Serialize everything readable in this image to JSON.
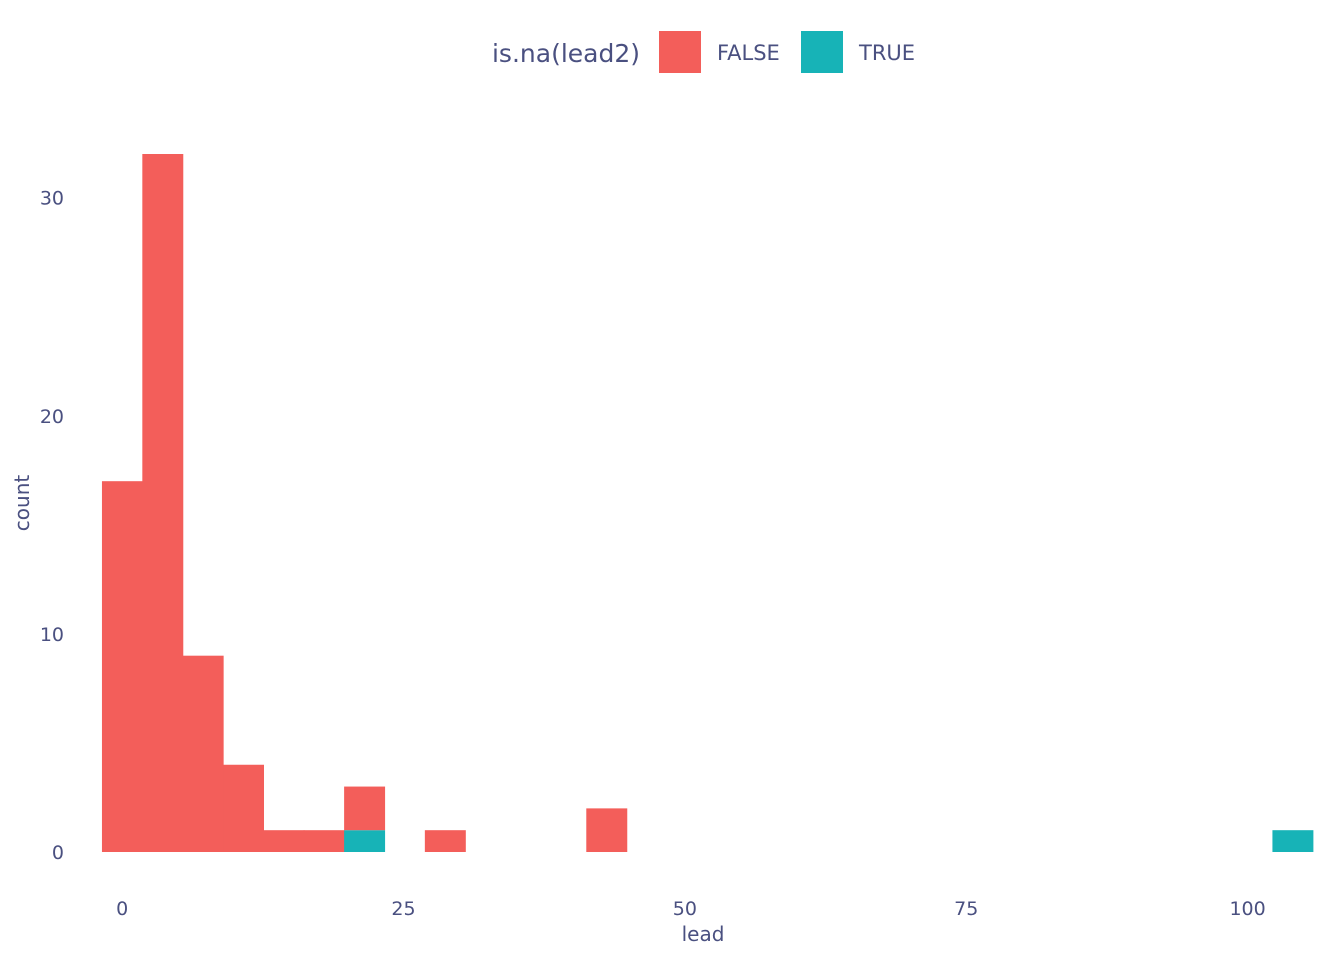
{
  "chart_data": {
    "type": "bar",
    "subtype": "stacked-histogram",
    "xlabel": "lead",
    "ylabel": "count",
    "xlim": [
      -2.5,
      107.5
    ],
    "ylim": [
      0,
      32
    ],
    "x_ticks": [
      0,
      25,
      50,
      75,
      100
    ],
    "y_ticks": [
      0,
      10,
      20,
      30
    ],
    "grid": false,
    "legend": {
      "title": "is.na(lead2)",
      "position": "top"
    },
    "bin_width": 3.586,
    "bins": [
      {
        "x0": -1.793,
        "x1": 1.793
      },
      {
        "x0": 1.793,
        "x1": 5.379
      },
      {
        "x0": 5.379,
        "x1": 8.966
      },
      {
        "x0": 8.966,
        "x1": 12.552
      },
      {
        "x0": 12.552,
        "x1": 16.138
      },
      {
        "x0": 16.138,
        "x1": 19.724
      },
      {
        "x0": 19.724,
        "x1": 23.31
      },
      {
        "x0": 23.31,
        "x1": 26.897
      },
      {
        "x0": 26.897,
        "x1": 30.483
      },
      {
        "x0": 30.483,
        "x1": 34.069
      },
      {
        "x0": 34.069,
        "x1": 37.655
      },
      {
        "x0": 37.655,
        "x1": 41.241
      },
      {
        "x0": 41.241,
        "x1": 44.828
      },
      {
        "x0": 44.828,
        "x1": 48.414
      },
      {
        "x0": 48.414,
        "x1": 52.0
      },
      {
        "x0": 52.0,
        "x1": 55.586
      },
      {
        "x0": 55.586,
        "x1": 59.172
      },
      {
        "x0": 59.172,
        "x1": 62.759
      },
      {
        "x0": 62.759,
        "x1": 66.345
      },
      {
        "x0": 66.345,
        "x1": 69.931
      },
      {
        "x0": 69.931,
        "x1": 73.517
      },
      {
        "x0": 73.517,
        "x1": 77.103
      },
      {
        "x0": 77.103,
        "x1": 80.69
      },
      {
        "x0": 80.69,
        "x1": 84.276
      },
      {
        "x0": 84.276,
        "x1": 87.862
      },
      {
        "x0": 87.862,
        "x1": 91.448
      },
      {
        "x0": 91.448,
        "x1": 95.034
      },
      {
        "x0": 95.034,
        "x1": 98.621
      },
      {
        "x0": 98.621,
        "x1": 102.207
      },
      {
        "x0": 102.207,
        "x1": 105.793
      }
    ],
    "series": [
      {
        "name": "FALSE",
        "color": "#F35E5A",
        "values": [
          17,
          32,
          9,
          4,
          1,
          1,
          2,
          0,
          1,
          0,
          0,
          0,
          2,
          0,
          0,
          0,
          0,
          0,
          0,
          0,
          0,
          0,
          0,
          0,
          0,
          0,
          0,
          0,
          0,
          0
        ]
      },
      {
        "name": "TRUE",
        "color": "#17B3B7",
        "values": [
          0,
          0,
          0,
          0,
          0,
          0,
          1,
          0,
          0,
          0,
          0,
          0,
          0,
          0,
          0,
          0,
          0,
          0,
          0,
          0,
          0,
          0,
          0,
          0,
          0,
          0,
          0,
          0,
          0,
          1
        ]
      }
    ]
  }
}
